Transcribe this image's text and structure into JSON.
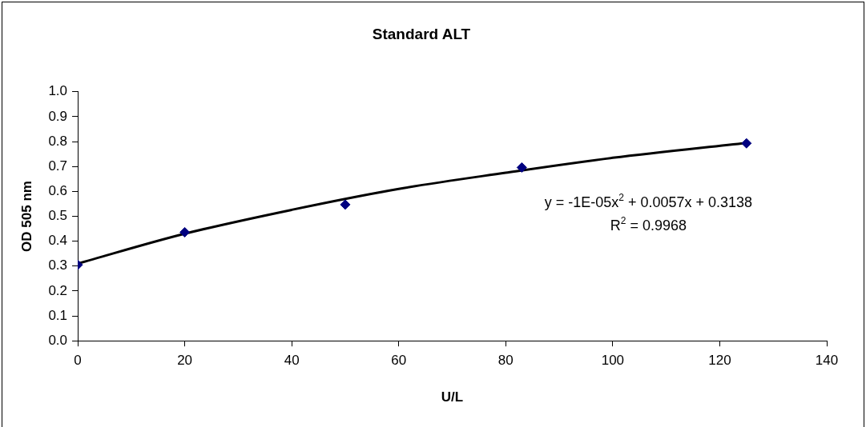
{
  "chart_data": {
    "type": "scatter",
    "title": "Standard ALT",
    "xlabel": "U/L",
    "ylabel": "OD 505 nm",
    "series": [
      {
        "color": "#000080",
        "x": [
          0,
          20,
          50,
          83,
          125
        ],
        "values": [
          0.305,
          0.436,
          0.547,
          0.696,
          0.793
        ]
      },
      {
        "type": "line",
        "color": "#000000",
        "marker": "none",
        "x": [
          0,
          20,
          40,
          60,
          80,
          100,
          125
        ],
        "values": [
          0.31,
          0.43,
          0.526,
          0.61,
          0.675,
          0.735,
          0.795
        ]
      }
    ],
    "xlim": [
      0,
      140
    ],
    "xticks": [
      0,
      20,
      40,
      60,
      80,
      100,
      120,
      140
    ],
    "ylim": [
      0,
      1
    ],
    "yticks": [
      {
        "value": 0,
        "label": "0.0"
      },
      {
        "value": 0.1,
        "label": "0.1"
      },
      {
        "value": 0.2,
        "label": "0.2"
      },
      {
        "value": 0.3,
        "label": "0.3"
      },
      {
        "value": 0.4,
        "label": "0.4"
      },
      {
        "value": 0.5,
        "label": "0.5"
      },
      {
        "value": 0.6,
        "label": "0.6"
      },
      {
        "value": 0.7,
        "label": "0.7"
      },
      {
        "value": 0.8,
        "label": "0.8"
      },
      {
        "value": 0.9,
        "label": "0.9"
      },
      {
        "value": 1,
        "label": "1.0"
      }
    ],
    "marker": "diamond",
    "grid": false,
    "legend": false,
    "annotations": [
      "y = -1E-05x$^{2}$ + 0.0057x + 0.3138",
      "R$^{2}$ = 0.9968"
    ]
  }
}
